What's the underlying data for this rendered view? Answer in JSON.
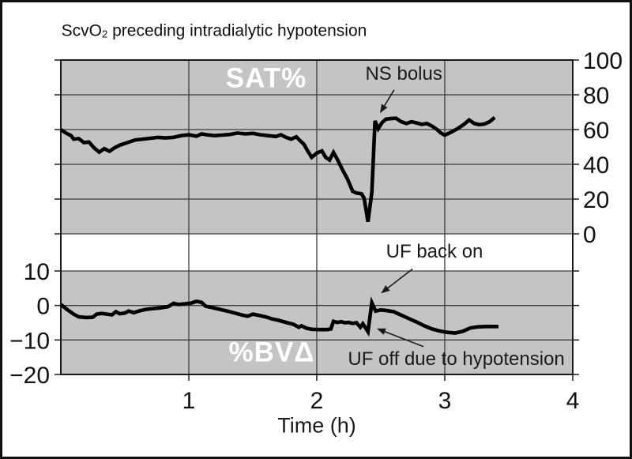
{
  "title": {
    "prefix": "ScvO",
    "subscript": "2",
    "suffix": " preceding intradialytic hypotension"
  },
  "xaxis": {
    "label": "Time (h)",
    "xlim": [
      0,
      4
    ],
    "tick_values": [
      1,
      2,
      3,
      4
    ],
    "tick_labels": [
      "1",
      "2",
      "3",
      "4"
    ]
  },
  "colors": {
    "panel_bg": "#c4c4c4",
    "grid": "#3c3c3c",
    "axis": "#1a1a1a",
    "curve": "#000000",
    "inside_label": "#ffffff"
  },
  "chart_data": [
    {
      "type": "line",
      "inside_label": "SAT%",
      "ylim": [
        0,
        100
      ],
      "ytick_values": [
        100,
        80,
        60,
        40,
        20,
        0
      ],
      "ytick_labels": [
        "100",
        "80",
        "60",
        "40",
        "20",
        "0"
      ],
      "ytick_side": "right",
      "series": [
        {
          "name": "SAT%",
          "x": [
            0.0,
            0.04,
            0.08,
            0.1,
            0.14,
            0.18,
            0.22,
            0.26,
            0.3,
            0.34,
            0.38,
            0.42,
            0.46,
            0.52,
            0.58,
            0.64,
            0.7,
            0.76,
            0.82,
            0.88,
            0.94,
            1.0,
            1.06,
            1.1,
            1.14,
            1.2,
            1.26,
            1.32,
            1.38,
            1.44,
            1.5,
            1.56,
            1.62,
            1.68,
            1.72,
            1.76,
            1.8,
            1.84,
            1.86,
            1.9,
            1.93,
            1.96,
            2.0,
            2.04,
            2.07,
            2.1,
            2.13,
            2.16,
            2.2,
            2.24,
            2.28,
            2.31,
            2.35,
            2.37,
            2.4,
            2.43,
            2.455,
            2.48,
            2.51,
            2.54,
            2.58,
            2.62,
            2.66,
            2.7,
            2.74,
            2.78,
            2.82,
            2.86,
            2.9,
            2.94,
            2.97,
            3.0,
            3.05,
            3.1,
            3.15,
            3.19,
            3.23,
            3.27,
            3.31,
            3.35,
            3.39
          ],
          "y": [
            60,
            58,
            56.5,
            54.5,
            54.8,
            52.5,
            52.8,
            49.5,
            47,
            49,
            47.5,
            49.5,
            51,
            52.5,
            54,
            54.5,
            55,
            55.5,
            55.2,
            55.5,
            56.5,
            57,
            56.2,
            57.5,
            57,
            56.5,
            56.8,
            57.2,
            58,
            57.5,
            57.8,
            57,
            56.5,
            56,
            57,
            55.5,
            54.5,
            55.8,
            54.3,
            51.5,
            47.5,
            44,
            46.5,
            47.7,
            44,
            42.5,
            46.8,
            43,
            37,
            31.5,
            24.5,
            23.5,
            23,
            20.5,
            7,
            24,
            65,
            60.5,
            64,
            66,
            66.3,
            66.5,
            64.5,
            63.5,
            64.5,
            63.8,
            63,
            63.5,
            62,
            60,
            58,
            56.8,
            58.5,
            60.5,
            63,
            65.5,
            63.5,
            62.8,
            63.2,
            64.5,
            67
          ]
        }
      ],
      "annotations": [
        {
          "text": "NS bolus",
          "text_at": {
            "t": 2.68,
            "value": 92
          },
          "points_at": {
            "t": 2.49,
            "value": 69
          }
        }
      ]
    },
    {
      "type": "line",
      "inside_label": "%BVΔ",
      "ylim": [
        -20,
        10
      ],
      "ytick_values": [
        10,
        0,
        -10,
        -20
      ],
      "ytick_labels": [
        "10",
        "0",
        "−10",
        "−20"
      ],
      "ytick_side": "left",
      "series": [
        {
          "name": "%BVΔ",
          "x": [
            0.0,
            0.05,
            0.1,
            0.14,
            0.2,
            0.25,
            0.28,
            0.32,
            0.36,
            0.4,
            0.43,
            0.46,
            0.5,
            0.53,
            0.57,
            0.62,
            0.67,
            0.72,
            0.78,
            0.84,
            0.88,
            0.92,
            0.97,
            1.02,
            1.06,
            1.1,
            1.13,
            1.18,
            1.24,
            1.3,
            1.36,
            1.42,
            1.46,
            1.5,
            1.55,
            1.6,
            1.65,
            1.7,
            1.76,
            1.82,
            1.86,
            1.88,
            1.92,
            1.96,
            2.02,
            2.08,
            2.11,
            2.13,
            2.16,
            2.19,
            2.22,
            2.25,
            2.28,
            2.31,
            2.34,
            2.36,
            2.4,
            2.43,
            2.46,
            2.5,
            2.55,
            2.6,
            2.66,
            2.72,
            2.78,
            2.84,
            2.9,
            2.96,
            3.02,
            3.08,
            3.14,
            3.2,
            3.26,
            3.32,
            3.38,
            3.42
          ],
          "y": [
            0.3,
            -1.2,
            -2.5,
            -3.3,
            -3.5,
            -3.4,
            -2.5,
            -2.3,
            -2.5,
            -2.7,
            -1.8,
            -2.4,
            -2.2,
            -1.6,
            -2.1,
            -1.5,
            -1.1,
            -0.9,
            -0.7,
            -0.3,
            0.6,
            0.3,
            0.5,
            0.7,
            1.2,
            0.9,
            -0.2,
            -0.6,
            -1.1,
            -1.6,
            -2.2,
            -2.8,
            -3.1,
            -2.5,
            -2.9,
            -3.3,
            -3.9,
            -4.3,
            -4.9,
            -5.5,
            -6.3,
            -5.9,
            -6.6,
            -6.9,
            -7.0,
            -7.0,
            -6.8,
            -4.6,
            -4.9,
            -4.7,
            -5.0,
            -4.9,
            -5.2,
            -5.0,
            -6.3,
            -5.3,
            -7.6,
            0.8,
            -1.6,
            -1.3,
            -1.5,
            -1.8,
            -2.8,
            -3.8,
            -4.8,
            -5.9,
            -6.8,
            -7.4,
            -7.8,
            -8.0,
            -7.5,
            -6.5,
            -6.2,
            -6.1,
            -6.1,
            -6.1
          ]
        }
      ],
      "annotations": [
        {
          "text": "UF back on",
          "text_at": {
            "t": 2.92,
            "value": 15.5
          },
          "points_at": {
            "t": 2.49,
            "value": 3.2
          }
        },
        {
          "text": "UF off due to hypotension",
          "text_at": {
            "t": 3.09,
            "value": -15.6
          },
          "points_at": {
            "t": 2.45,
            "value": -6.4
          }
        }
      ]
    }
  ]
}
